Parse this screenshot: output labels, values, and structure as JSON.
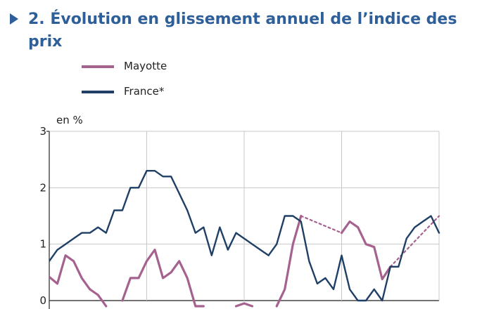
{
  "title": "2. Évolution en glissement annuel de l’indice des prix",
  "legend": {
    "mayotte": "Mayotte",
    "france": "France*"
  },
  "chart_data": {
    "type": "line",
    "ylabel": "en %",
    "ylim": [
      0,
      3
    ],
    "yticks": [
      0,
      1,
      2,
      3
    ],
    "grid": true,
    "x": [
      0,
      1,
      2,
      3,
      4,
      5,
      6,
      7,
      8,
      9,
      10,
      11,
      12,
      13,
      14,
      15,
      16,
      17,
      18,
      19,
      20,
      21,
      22,
      23,
      24,
      25,
      26,
      27,
      28,
      29,
      30,
      31,
      32,
      33,
      34,
      35,
      36,
      37,
      38,
      39,
      40,
      41,
      42,
      43,
      44,
      45,
      46,
      47,
      48
    ],
    "xlim": [
      0,
      48
    ],
    "x_gridlines": [
      12,
      24,
      36,
      48
    ],
    "series": [
      {
        "name": "Mayotte",
        "color": "#a5628f",
        "segments": [
          {
            "style": "solid",
            "points": [
              [
                0,
                0.42
              ],
              [
                1,
                0.3
              ],
              [
                2,
                0.8
              ],
              [
                3,
                0.7
              ],
              [
                4,
                0.4
              ],
              [
                5,
                0.2
              ],
              [
                6,
                0.1
              ],
              [
                7,
                -0.1
              ]
            ]
          },
          {
            "style": "solid",
            "points": [
              [
                9,
                0.0
              ],
              [
                10,
                0.4
              ],
              [
                11,
                0.4
              ],
              [
                12,
                0.7
              ],
              [
                13,
                0.9
              ],
              [
                14,
                0.4
              ],
              [
                15,
                0.5
              ],
              [
                16,
                0.7
              ],
              [
                17,
                0.4
              ],
              [
                18,
                -0.1
              ],
              [
                19,
                -0.1
              ]
            ]
          },
          {
            "style": "solid",
            "points": [
              [
                23,
                -0.1
              ],
              [
                24,
                -0.05
              ],
              [
                25,
                -0.1
              ]
            ]
          },
          {
            "style": "solid",
            "points": [
              [
                28,
                -0.1
              ],
              [
                29,
                0.2
              ],
              [
                30,
                1.0
              ],
              [
                31,
                1.5
              ]
            ]
          },
          {
            "style": "dotted",
            "points": [
              [
                31,
                1.5
              ],
              [
                36,
                1.2
              ]
            ]
          },
          {
            "style": "solid",
            "points": [
              [
                36,
                1.2
              ],
              [
                37,
                1.4
              ],
              [
                38,
                1.3
              ],
              [
                39,
                1.0
              ],
              [
                40,
                0.95
              ],
              [
                41,
                0.38
              ],
              [
                42,
                0.6
              ]
            ]
          },
          {
            "style": "dotted",
            "points": [
              [
                42,
                0.6
              ],
              [
                48,
                1.5
              ]
            ]
          }
        ]
      },
      {
        "name": "France*",
        "color": "#1f3f66",
        "segments": [
          {
            "style": "solid",
            "points": [
              [
                0,
                0.7
              ],
              [
                1,
                0.9
              ],
              [
                2,
                1.0
              ],
              [
                3,
                1.1
              ],
              [
                4,
                1.2
              ],
              [
                5,
                1.2
              ],
              [
                6,
                1.3
              ],
              [
                7,
                1.2
              ],
              [
                8,
                1.6
              ],
              [
                9,
                1.6
              ],
              [
                10,
                2.0
              ],
              [
                11,
                2.0
              ],
              [
                12,
                2.3
              ],
              [
                13,
                2.3
              ],
              [
                14,
                2.2
              ],
              [
                15,
                2.2
              ],
              [
                16,
                1.9
              ],
              [
                17,
                1.6
              ],
              [
                18,
                1.2
              ],
              [
                19,
                1.3
              ],
              [
                20,
                0.8
              ],
              [
                21,
                1.3
              ],
              [
                22,
                0.9
              ],
              [
                23,
                1.2
              ],
              [
                24,
                1.1
              ],
              [
                25,
                1.0
              ],
              [
                26,
                0.9
              ],
              [
                27,
                0.8
              ],
              [
                28,
                1.0
              ],
              [
                29,
                1.5
              ],
              [
                30,
                1.5
              ],
              [
                31,
                1.4
              ],
              [
                32,
                0.7
              ],
              [
                33,
                0.3
              ],
              [
                34,
                0.4
              ],
              [
                35,
                0.2
              ],
              [
                36,
                0.8
              ],
              [
                37,
                0.2
              ],
              [
                38,
                0.0
              ],
              [
                39,
                0.0
              ],
              [
                40,
                0.2
              ],
              [
                41,
                0.0
              ],
              [
                42,
                0.6
              ],
              [
                43,
                0.6
              ],
              [
                44,
                1.1
              ],
              [
                45,
                1.3
              ],
              [
                46,
                1.4
              ],
              [
                47,
                1.5
              ],
              [
                48,
                1.2
              ]
            ]
          }
        ]
      }
    ]
  }
}
